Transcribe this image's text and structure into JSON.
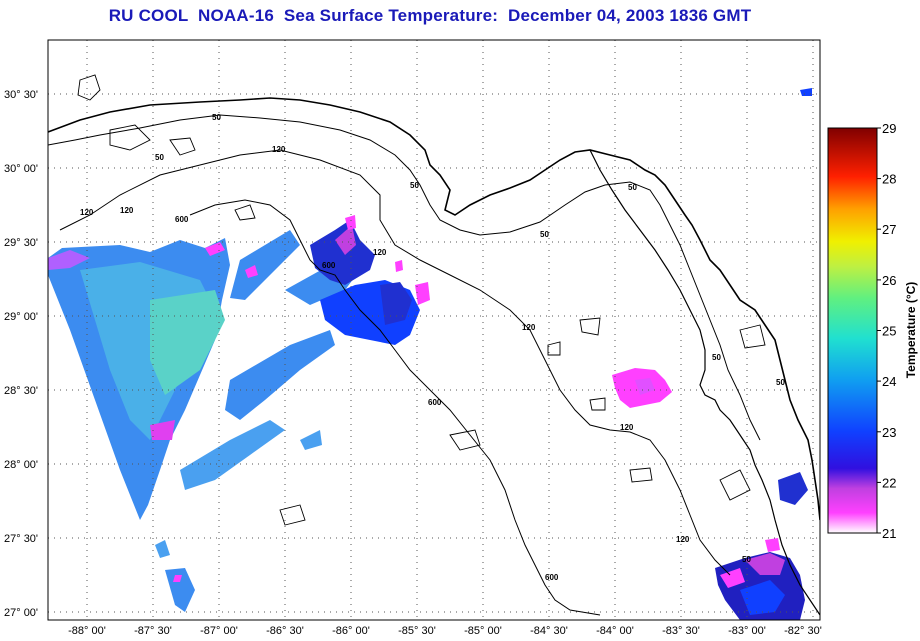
{
  "title": "RU COOL  NOAA-16  Sea Surface Temperature:  December 04, 2003 1836 GMT",
  "lat_labels": [
    "30° 30'",
    "30° 00'",
    "29° 30'",
    "29° 00'",
    "28° 30'",
    "28° 00'",
    "27° 30'",
    "27° 00'"
  ],
  "lon_labels": [
    "-88° 00'",
    "-87° 30'",
    "-87° 00'",
    "-86° 30'",
    "-86° 00'",
    "-85° 30'",
    "-85° 00'",
    "-84° 30'",
    "-84° 00'",
    "-83° 30'",
    "-83° 00'",
    "-82° 30'"
  ],
  "contour_labels": [
    "50",
    "120",
    "50",
    "50",
    "120",
    "600",
    "120",
    "600",
    "50",
    "120",
    "50",
    "50",
    "120",
    "600",
    "120",
    "50",
    "600",
    "50",
    "120"
  ],
  "colorbar": {
    "title": "Temperature (°C)",
    "ticks": [
      "29",
      "28",
      "27",
      "26",
      "25",
      "24",
      "23",
      "22",
      "21"
    ],
    "range": [
      21,
      29
    ]
  },
  "colors": {
    "title": "#1a1ab8",
    "cool": "#ff30ff",
    "warm": "#c00000"
  }
}
